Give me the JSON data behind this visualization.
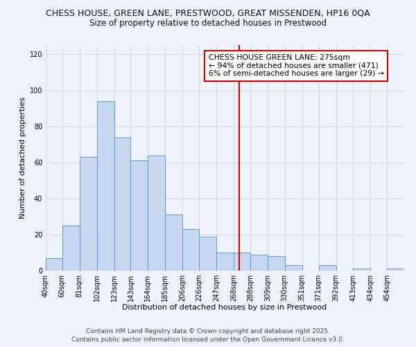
{
  "title1": "CHESS HOUSE, GREEN LANE, PRESTWOOD, GREAT MISSENDEN, HP16 0QA",
  "title2": "Size of property relative to detached houses in Prestwood",
  "xlabel": "Distribution of detached houses by size in Prestwood",
  "ylabel": "Number of detached properties",
  "categories": [
    "40sqm",
    "60sqm",
    "81sqm",
    "102sqm",
    "123sqm",
    "143sqm",
    "164sqm",
    "185sqm",
    "206sqm",
    "226sqm",
    "247sqm",
    "268sqm",
    "288sqm",
    "309sqm",
    "330sqm",
    "351sqm",
    "371sqm",
    "392sqm",
    "413sqm",
    "434sqm",
    "454sqm"
  ],
  "bin_edges": [
    40,
    60,
    81,
    102,
    123,
    143,
    164,
    185,
    206,
    226,
    247,
    268,
    288,
    309,
    330,
    351,
    371,
    392,
    413,
    434,
    454,
    474
  ],
  "values": [
    7,
    25,
    63,
    94,
    74,
    61,
    64,
    31,
    23,
    19,
    10,
    10,
    9,
    8,
    3,
    0,
    3,
    0,
    1,
    0,
    1
  ],
  "bar_color": "#c8d8f0",
  "bar_edge_color": "#5b9bd5",
  "vline_x": 275,
  "vline_color": "#cc0000",
  "annotation_title": "CHESS HOUSE GREEN LANE: 275sqm",
  "annotation_line1": "← 94% of detached houses are smaller (471)",
  "annotation_line2": "6% of semi-detached houses are larger (29) →",
  "annotation_box_color": "#ffffff",
  "annotation_box_edge_color": "#cc0000",
  "ylim": [
    0,
    125
  ],
  "yticks": [
    0,
    20,
    40,
    60,
    80,
    100,
    120
  ],
  "footnote1": "Contains HM Land Registry data © Crown copyright and database right 2025.",
  "footnote2": "Contains public sector information licensed under the Open Government Licence v3.0.",
  "bg_color": "#eef2fb",
  "grid_color": "#d0d8ee",
  "title1_fontsize": 9.0,
  "title2_fontsize": 8.5,
  "axis_label_fontsize": 8.0,
  "tick_fontsize": 7.0,
  "annotation_fontsize": 7.8,
  "footnote_fontsize": 6.5
}
